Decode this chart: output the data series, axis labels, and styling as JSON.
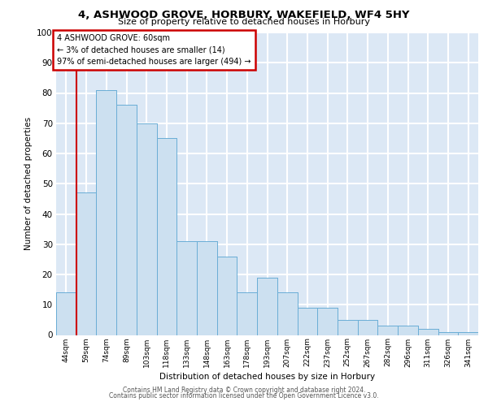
{
  "title1": "4, ASHWOOD GROVE, HORBURY, WAKEFIELD, WF4 5HY",
  "title2": "Size of property relative to detached houses in Horbury",
  "xlabel": "Distribution of detached houses by size in Horbury",
  "ylabel": "Number of detached properties",
  "categories": [
    "44sqm",
    "59sqm",
    "74sqm",
    "89sqm",
    "103sqm",
    "118sqm",
    "133sqm",
    "148sqm",
    "163sqm",
    "178sqm",
    "193sqm",
    "207sqm",
    "222sqm",
    "237sqm",
    "252sqm",
    "267sqm",
    "282sqm",
    "296sqm",
    "311sqm",
    "326sqm",
    "341sqm"
  ],
  "values": [
    14,
    47,
    81,
    76,
    70,
    65,
    31,
    31,
    26,
    14,
    19,
    14,
    9,
    9,
    5,
    5,
    3,
    3,
    2,
    1,
    1
  ],
  "bar_color": "#cce0f0",
  "bar_edge_color": "#6baed6",
  "property_line_color": "#cc0000",
  "annotation_line1": "4 ASHWOOD GROVE: 60sqm",
  "annotation_line2": "← 3% of detached houses are smaller (14)",
  "annotation_line3": "97% of semi-detached houses are larger (494) →",
  "annotation_box_color": "#cc0000",
  "bg_color": "#dce8f5",
  "grid_color": "#ffffff",
  "ylim": [
    0,
    100
  ],
  "yticks": [
    0,
    10,
    20,
    30,
    40,
    50,
    60,
    70,
    80,
    90,
    100
  ],
  "footer1": "Contains HM Land Registry data © Crown copyright and database right 2024.",
  "footer2": "Contains public sector information licensed under the Open Government Licence v3.0."
}
